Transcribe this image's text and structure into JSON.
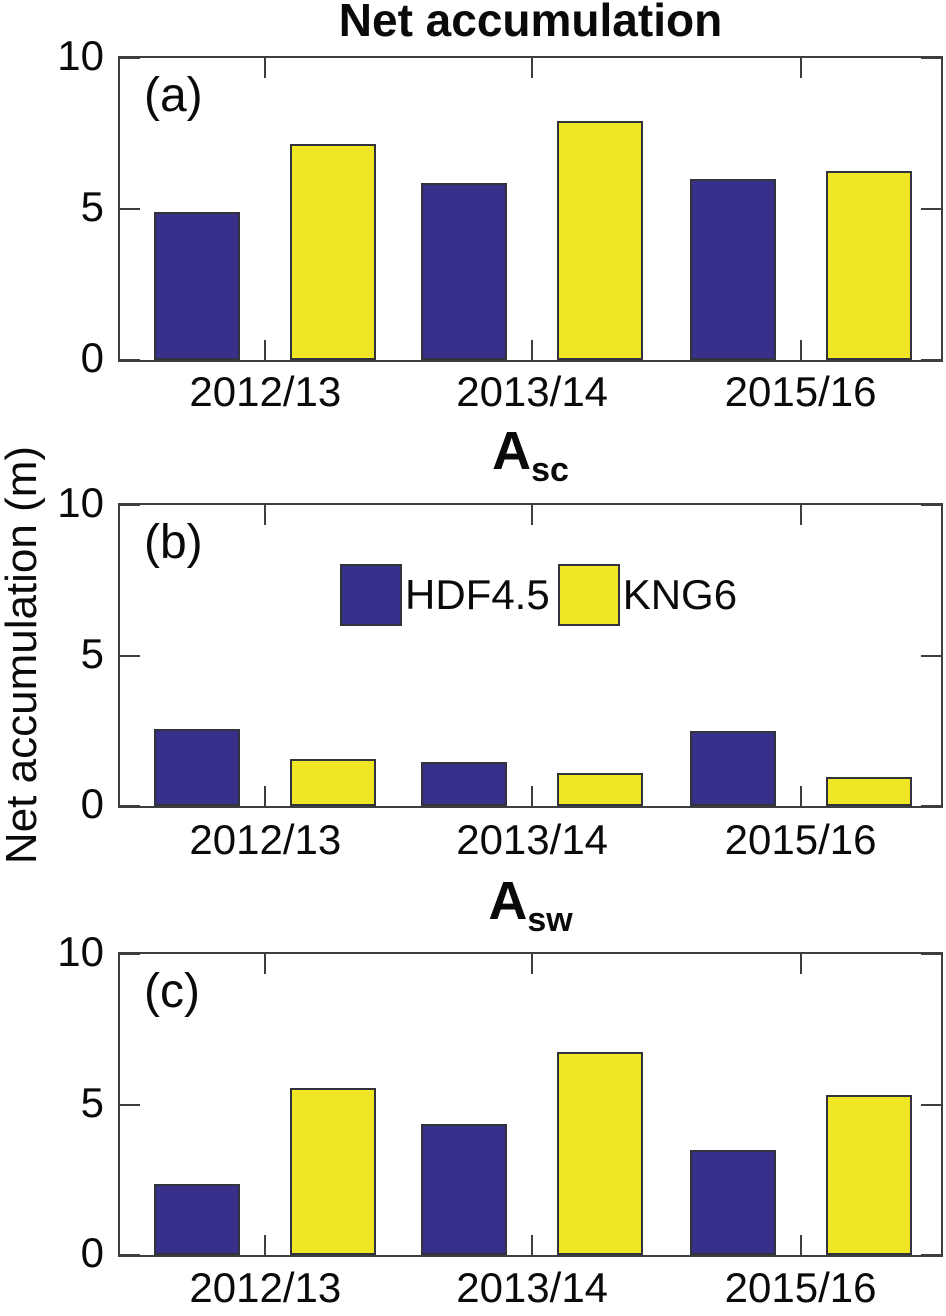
{
  "figure": {
    "ylabel": "Net accumulation (m)",
    "colors": {
      "axis": "#3e3e3e",
      "text": "#0a0a0a",
      "bar_border": "#33333d",
      "hdf45_blue": "#37318c",
      "kng6_yellow": "#efe626",
      "background": "#ffffff"
    }
  },
  "legend": {
    "items": [
      {
        "label": "HDF4.5",
        "color": "#37318c"
      },
      {
        "label": "KNG6",
        "color": "#efe626"
      }
    ],
    "location": "inside panel b, upper center"
  },
  "chart_data": [
    {
      "type": "bar",
      "panel_label": "(a)",
      "title_base": "Net accumulation",
      "title_sub": "",
      "categories": [
        "2012/13",
        "2013/14",
        "2015/16"
      ],
      "series": [
        {
          "name": "HDF4.5",
          "color": "#37318c",
          "values": [
            4.9,
            5.85,
            6.0
          ]
        },
        {
          "name": "KNG6",
          "color": "#efe626",
          "values": [
            7.15,
            7.9,
            6.25
          ]
        }
      ],
      "ylabel": "Net accumulation (m)",
      "ylim": [
        0,
        10
      ],
      "yticks": [
        0,
        5,
        10
      ],
      "grid": "off"
    },
    {
      "type": "bar",
      "panel_label": "(b)",
      "title_base": "A",
      "title_sub": "sc",
      "categories": [
        "2012/13",
        "2013/14",
        "2015/16"
      ],
      "series": [
        {
          "name": "HDF4.5",
          "color": "#37318c",
          "values": [
            2.55,
            1.45,
            2.5
          ]
        },
        {
          "name": "KNG6",
          "color": "#efe626",
          "values": [
            1.55,
            1.1,
            0.95
          ]
        }
      ],
      "ylabel": "Net accumulation (m)",
      "ylim": [
        0,
        10
      ],
      "yticks": [
        0,
        5,
        10
      ],
      "grid": "off"
    },
    {
      "type": "bar",
      "panel_label": "(c)",
      "title_base": "A",
      "title_sub": "sw",
      "categories": [
        "2012/13",
        "2013/14",
        "2015/16"
      ],
      "series": [
        {
          "name": "HDF4.5",
          "color": "#37318c",
          "values": [
            2.35,
            4.35,
            3.5
          ]
        },
        {
          "name": "KNG6",
          "color": "#efe626",
          "values": [
            5.55,
            6.75,
            5.3
          ]
        }
      ],
      "ylabel": "Net accumulation (m)",
      "ylim": [
        0,
        10
      ],
      "yticks": [
        0,
        5,
        10
      ],
      "grid": "off"
    }
  ]
}
